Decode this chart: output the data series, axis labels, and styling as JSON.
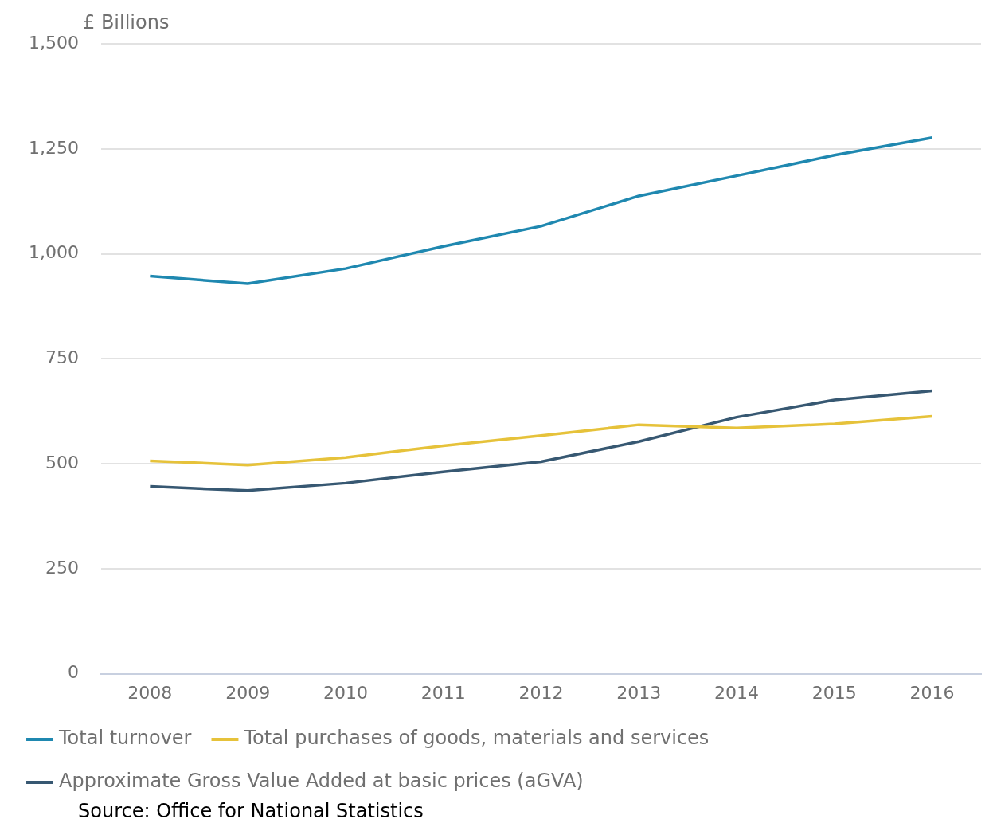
{
  "chart_data": {
    "type": "line",
    "ylabel": "£ Billions",
    "categories": [
      "2008",
      "2009",
      "2010",
      "2011",
      "2012",
      "2013",
      "2014",
      "2015",
      "2016"
    ],
    "series": [
      {
        "name": "Total turnover",
        "color": "#1f88b0",
        "values": [
          947,
          929,
          965,
          1018,
          1066,
          1138,
          1186,
          1235,
          1277
        ]
      },
      {
        "name": "Total purchases of goods, materials and services",
        "color": "#e6c23a",
        "values": [
          507,
          497,
          515,
          543,
          567,
          593,
          585,
          595,
          613
        ]
      },
      {
        "name": "Approximate Gross Value Added at basic prices (aGVA)",
        "color": "#375872",
        "values": [
          446,
          436,
          454,
          481,
          505,
          553,
          611,
          652,
          674
        ]
      }
    ],
    "ylim": [
      0,
      1500
    ],
    "yticks": [
      {
        "value": 0,
        "label": "0"
      },
      {
        "value": 250,
        "label": "250"
      },
      {
        "value": 500,
        "label": "500"
      },
      {
        "value": 750,
        "label": "750"
      },
      {
        "value": 1000,
        "label": "1,000"
      },
      {
        "value": 1250,
        "label": "1,250"
      },
      {
        "value": 1500,
        "label": "1,500"
      }
    ],
    "grid": "y",
    "legend": "bottom",
    "marker": "none",
    "line_style": "solid",
    "annotations": [
      "Source: Office for National Statistics"
    ]
  }
}
